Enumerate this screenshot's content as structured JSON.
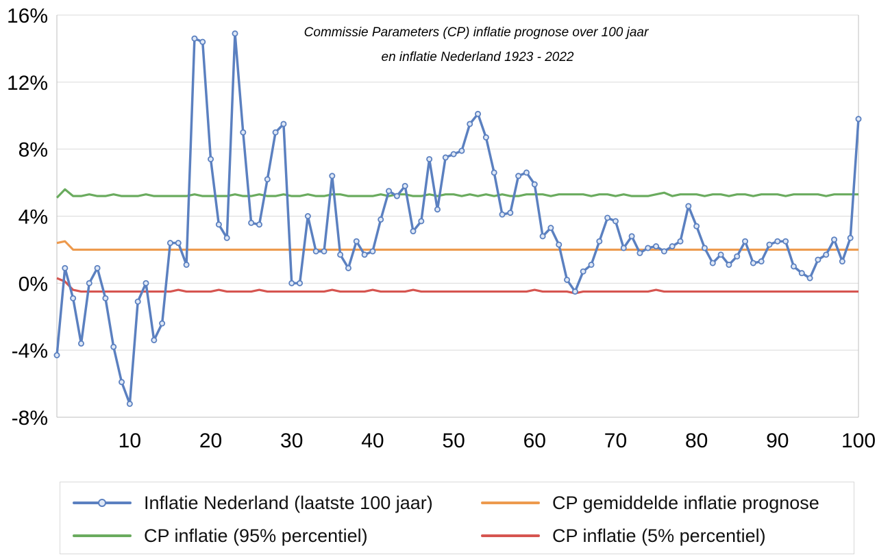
{
  "chart_data": {
    "type": "line",
    "title": "Commissie Parameters (CP) inflatie prognose over 100 jaar",
    "subtitle": "en inflatie Nederland 1923 - 2022",
    "xlabel": "",
    "ylabel": "",
    "xlim": [
      1,
      100
    ],
    "ylim": [
      -8,
      16
    ],
    "x_ticks": [
      10,
      20,
      30,
      40,
      50,
      60,
      70,
      80,
      90,
      100
    ],
    "x_tick_labels": [
      "10",
      "20",
      "30",
      "40",
      "50",
      "60",
      "70",
      "80",
      "90",
      "100"
    ],
    "y_ticks": [
      -8,
      -4,
      0,
      4,
      8,
      12,
      16
    ],
    "y_tick_labels": [
      "-8%",
      "-4%",
      "0%",
      "4%",
      "8%",
      "12%",
      "16%"
    ],
    "grid": "horizontal",
    "legend_position": "bottom",
    "series": [
      {
        "name": "Inflatie Nederland (laatste 100 jaar)",
        "color": "#5b80c0",
        "marker": "circle",
        "values": [
          -4.3,
          0.9,
          -0.9,
          -3.6,
          0.0,
          0.9,
          -0.9,
          -3.8,
          -5.9,
          -7.2,
          -1.1,
          0.0,
          -3.4,
          -2.4,
          2.4,
          2.4,
          1.1,
          14.6,
          14.4,
          7.4,
          3.5,
          2.7,
          14.9,
          9.0,
          3.6,
          3.5,
          6.2,
          9.0,
          9.5,
          0.0,
          0.0,
          4.0,
          1.9,
          1.9,
          6.4,
          1.7,
          0.9,
          2.5,
          1.7,
          1.9,
          3.8,
          5.5,
          5.2,
          5.8,
          3.1,
          3.7,
          7.4,
          4.4,
          7.5,
          7.7,
          7.9,
          9.5,
          10.1,
          8.7,
          6.6,
          4.1,
          4.2,
          6.4,
          6.6,
          5.9,
          2.8,
          3.3,
          2.3,
          0.2,
          -0.5,
          0.7,
          1.1,
          2.5,
          3.9,
          3.7,
          2.1,
          2.8,
          1.8,
          2.1,
          2.2,
          1.9,
          2.2,
          2.5,
          4.6,
          3.4,
          2.1,
          1.2,
          1.7,
          1.1,
          1.6,
          2.5,
          1.2,
          1.3,
          2.3,
          2.5,
          2.5,
          1.0,
          0.6,
          0.3,
          1.4,
          1.7,
          2.6,
          1.3,
          2.7,
          9.8
        ]
      },
      {
        "name": "CP gemiddelde inflatie prognose",
        "color": "#ed9a4e",
        "marker": "none",
        "values": [
          2.4,
          2.5,
          2.0,
          2.0,
          2.0,
          2.0,
          2.0,
          2.0,
          2.0,
          2.0,
          2.0,
          2.0,
          2.0,
          2.0,
          2.0,
          2.0,
          2.0,
          2.0,
          2.0,
          2.0,
          2.0,
          2.0,
          2.0,
          2.0,
          2.0,
          2.0,
          2.0,
          2.0,
          2.0,
          2.0,
          2.0,
          2.0,
          2.0,
          2.0,
          2.0,
          2.0,
          2.0,
          2.0,
          2.0,
          2.0,
          2.0,
          2.0,
          2.0,
          2.0,
          2.0,
          2.0,
          2.0,
          2.0,
          2.0,
          2.0,
          2.0,
          2.0,
          2.0,
          2.0,
          2.0,
          2.0,
          2.0,
          2.0,
          2.0,
          2.0,
          2.0,
          2.0,
          2.0,
          2.0,
          2.0,
          2.0,
          2.0,
          2.0,
          2.0,
          2.0,
          2.0,
          2.0,
          2.0,
          2.0,
          2.0,
          2.0,
          2.0,
          2.0,
          2.0,
          2.0,
          2.0,
          2.0,
          2.0,
          2.0,
          2.0,
          2.0,
          2.0,
          2.0,
          2.0,
          2.0,
          2.0,
          2.0,
          2.0,
          2.0,
          2.0,
          2.0,
          2.0,
          2.0,
          2.0,
          2.0
        ]
      },
      {
        "name": "CP inflatie (95% percentiel)",
        "color": "#6aab5e",
        "marker": "none",
        "values": [
          5.1,
          5.6,
          5.2,
          5.2,
          5.3,
          5.2,
          5.2,
          5.3,
          5.2,
          5.2,
          5.2,
          5.3,
          5.2,
          5.2,
          5.2,
          5.2,
          5.2,
          5.3,
          5.2,
          5.2,
          5.2,
          5.2,
          5.3,
          5.2,
          5.2,
          5.3,
          5.2,
          5.2,
          5.3,
          5.2,
          5.2,
          5.3,
          5.2,
          5.2,
          5.3,
          5.3,
          5.2,
          5.2,
          5.2,
          5.2,
          5.3,
          5.2,
          5.3,
          5.3,
          5.2,
          5.2,
          5.3,
          5.2,
          5.3,
          5.3,
          5.2,
          5.3,
          5.2,
          5.3,
          5.2,
          5.3,
          5.2,
          5.2,
          5.3,
          5.3,
          5.3,
          5.2,
          5.3,
          5.3,
          5.3,
          5.3,
          5.2,
          5.3,
          5.3,
          5.2,
          5.3,
          5.2,
          5.2,
          5.2,
          5.3,
          5.4,
          5.2,
          5.3,
          5.3,
          5.3,
          5.2,
          5.3,
          5.3,
          5.2,
          5.3,
          5.3,
          5.2,
          5.3,
          5.3,
          5.3,
          5.2,
          5.3,
          5.3,
          5.3,
          5.3,
          5.2,
          5.3,
          5.3,
          5.3,
          5.3
        ]
      },
      {
        "name": "CP inflatie (5% percentiel)",
        "color": "#d65550",
        "marker": "none",
        "values": [
          0.3,
          0.1,
          -0.4,
          -0.5,
          -0.5,
          -0.5,
          -0.5,
          -0.5,
          -0.5,
          -0.5,
          -0.5,
          -0.5,
          -0.5,
          -0.5,
          -0.5,
          -0.4,
          -0.5,
          -0.5,
          -0.5,
          -0.5,
          -0.4,
          -0.5,
          -0.5,
          -0.5,
          -0.5,
          -0.4,
          -0.5,
          -0.5,
          -0.5,
          -0.5,
          -0.5,
          -0.5,
          -0.5,
          -0.5,
          -0.4,
          -0.5,
          -0.5,
          -0.5,
          -0.5,
          -0.4,
          -0.5,
          -0.5,
          -0.5,
          -0.5,
          -0.4,
          -0.5,
          -0.5,
          -0.5,
          -0.5,
          -0.5,
          -0.5,
          -0.5,
          -0.5,
          -0.5,
          -0.5,
          -0.5,
          -0.5,
          -0.5,
          -0.5,
          -0.4,
          -0.5,
          -0.5,
          -0.5,
          -0.5,
          -0.6,
          -0.5,
          -0.5,
          -0.5,
          -0.5,
          -0.5,
          -0.5,
          -0.5,
          -0.5,
          -0.5,
          -0.4,
          -0.5,
          -0.5,
          -0.5,
          -0.5,
          -0.5,
          -0.5,
          -0.5,
          -0.5,
          -0.5,
          -0.5,
          -0.5,
          -0.5,
          -0.5,
          -0.5,
          -0.5,
          -0.5,
          -0.5,
          -0.5,
          -0.5,
          -0.5,
          -0.5,
          -0.5,
          -0.5,
          -0.5,
          -0.5
        ]
      }
    ]
  },
  "colors": {
    "grid": "#d9d9d9",
    "axis": "#bfbfbf",
    "marker_fill": "#dfe8f6"
  }
}
